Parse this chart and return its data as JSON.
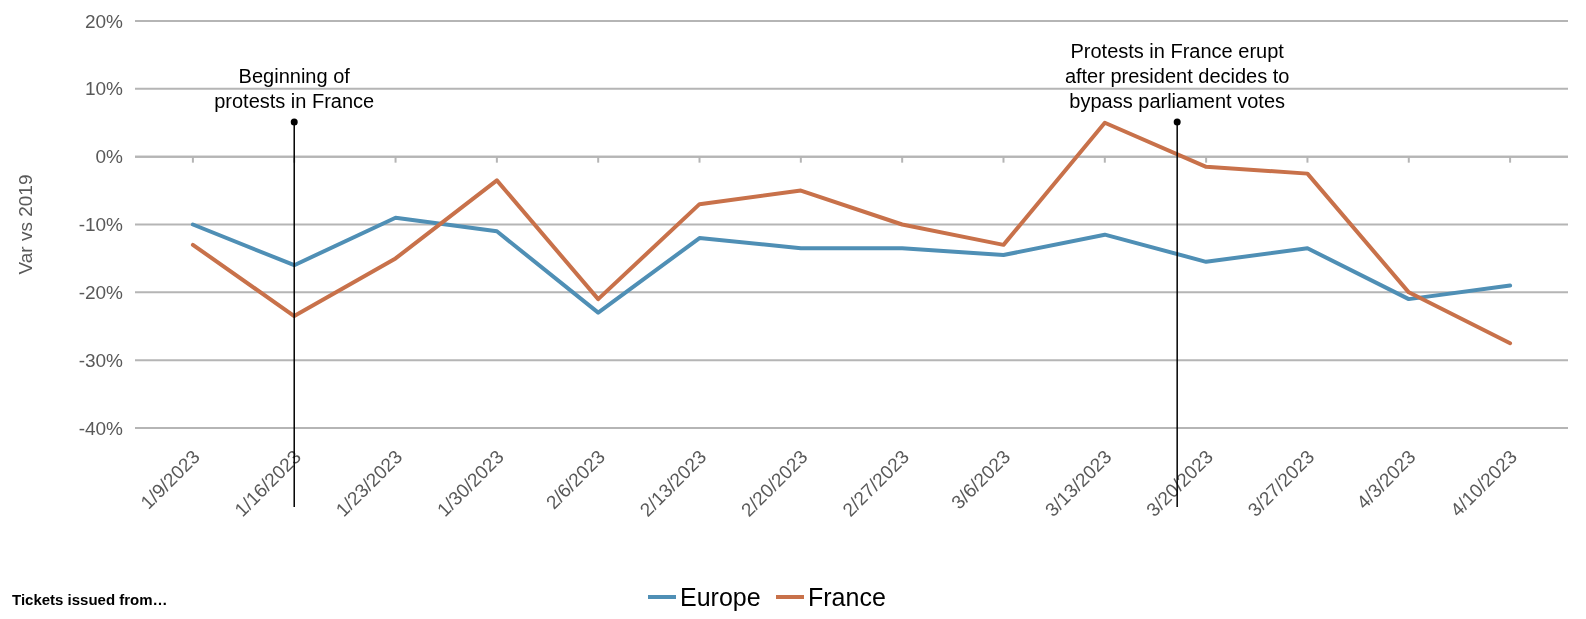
{
  "chart_data": {
    "type": "line",
    "ylabel": "Var vs 2019",
    "legend": "bottom",
    "grid": "y",
    "line_style": "solid",
    "marker": "none",
    "x": [
      "2023-01-09",
      "2023-01-16",
      "2023-01-23",
      "2023-01-30",
      "2023-02-06",
      "2023-02-13",
      "2023-02-20",
      "2023-02-27",
      "2023-03-06",
      "2023-03-13",
      "2023-03-20",
      "2023-03-27",
      "2023-04-03",
      "2023-04-10"
    ],
    "xlim": [
      "2023-01-05",
      "2023-04-14"
    ],
    "xticks": [
      {
        "value": "2023-01-09",
        "label": "1/9/2023"
      },
      {
        "value": "2023-01-16",
        "label": "1/16/2023"
      },
      {
        "value": "2023-01-23",
        "label": "1/23/2023"
      },
      {
        "value": "2023-01-30",
        "label": "1/30/2023"
      },
      {
        "value": "2023-02-06",
        "label": "2/6/2023"
      },
      {
        "value": "2023-02-13",
        "label": "2/13/2023"
      },
      {
        "value": "2023-02-20",
        "label": "2/20/2023"
      },
      {
        "value": "2023-02-27",
        "label": "2/27/2023"
      },
      {
        "value": "2023-03-06",
        "label": "3/6/2023"
      },
      {
        "value": "2023-03-13",
        "label": "3/13/2023"
      },
      {
        "value": "2023-03-20",
        "label": "3/20/2023"
      },
      {
        "value": "2023-03-27",
        "label": "3/27/2023"
      },
      {
        "value": "2023-04-03",
        "label": "4/3/2023"
      },
      {
        "value": "2023-04-10",
        "label": "4/10/2023"
      }
    ],
    "ylim": [
      -40,
      20
    ],
    "yticks": [
      {
        "value": -40,
        "label": "-40%"
      },
      {
        "value": -30,
        "label": "-30%"
      },
      {
        "value": -20,
        "label": "-20%"
      },
      {
        "value": -10,
        "label": "-10%"
      },
      {
        "value": 0,
        "label": "0%"
      },
      {
        "value": 10,
        "label": "10%"
      },
      {
        "value": 20,
        "label": "20%"
      }
    ],
    "series": [
      {
        "name": "Europe",
        "color": "#4f8fb5",
        "values": [
          -10,
          -16,
          -9,
          -11,
          -23,
          -12,
          -13.5,
          -13.5,
          -14.5,
          -11.5,
          -15.5,
          -13.5,
          -21,
          -19
        ]
      },
      {
        "name": "France",
        "color": "#c8714a",
        "values": [
          -13,
          -23.5,
          -15,
          -3.5,
          -21,
          -7,
          -5,
          -10,
          -13,
          5,
          -1.5,
          -2.5,
          -20,
          -27.5
        ]
      }
    ],
    "ref_lines": [
      {
        "axis": "x",
        "value": "2023-01-16",
        "label": "Beginning of\nprotests in France",
        "color": "#000000"
      },
      {
        "axis": "x",
        "value": "2023-03-18",
        "label": "Protests in France erupt\nafter president decides to\nbypass parliament votes",
        "color": "#000000"
      }
    ],
    "annotations": [
      "Tickets issued from…"
    ]
  }
}
